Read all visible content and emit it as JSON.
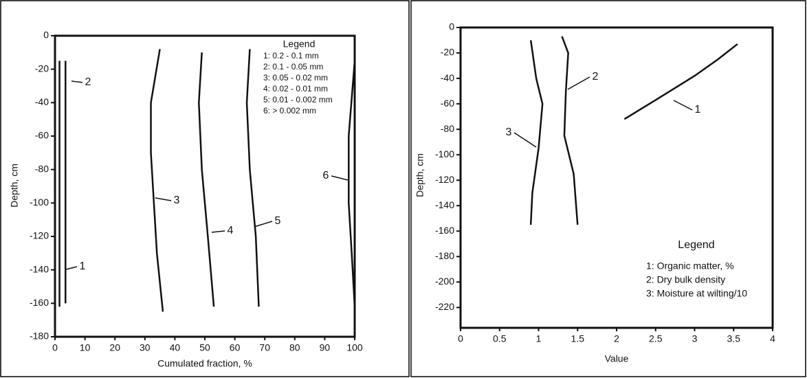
{
  "chart_data": [
    {
      "type": "line",
      "y_label": "Depth, cm",
      "x_label": "Cumulated fraction, %",
      "xlim": [
        0,
        100
      ],
      "xticks": [
        0,
        10,
        20,
        30,
        40,
        50,
        60,
        70,
        80,
        90,
        100
      ],
      "ylim": [
        -180,
        0
      ],
      "yticks": [
        0,
        -20,
        -40,
        -60,
        -80,
        -100,
        -120,
        -140,
        -160,
        -180
      ],
      "legend_title": "Legend",
      "series": [
        {
          "name": "1: 0.2 - 0.1 mm",
          "label": "1",
          "color": "#111",
          "x": [
            1.5,
            1.5
          ],
          "values": [
            -15,
            -162
          ]
        },
        {
          "name": "2: 0.1 - 0.05 mm",
          "label": "2",
          "color": "#111",
          "x": [
            3.5,
            3.5
          ],
          "values": [
            -15,
            -160
          ]
        },
        {
          "name": "3: 0.05 - 0.02 mm",
          "label": "3",
          "color": "#111",
          "x": [
            35,
            32,
            32,
            33,
            34,
            36
          ],
          "values": [
            -8,
            -40,
            -70,
            -100,
            -130,
            -165
          ]
        },
        {
          "name": "4: 0.02 - 0.01 mm",
          "label": "4",
          "color": "#111",
          "x": [
            49,
            48,
            49,
            51,
            53
          ],
          "values": [
            -10,
            -40,
            -80,
            -120,
            -162
          ]
        },
        {
          "name": "5: 0.01 - 0.002 mm",
          "label": "5",
          "color": "#111",
          "x": [
            65,
            64,
            65,
            67,
            68
          ],
          "values": [
            -8,
            -40,
            -80,
            -120,
            -162
          ]
        },
        {
          "name": "6: > 0.002 mm",
          "label": "6",
          "color": "#111",
          "x": [
            100,
            98,
            98,
            99,
            100
          ],
          "values": [
            -15,
            -60,
            -100,
            -130,
            -162
          ]
        }
      ]
    },
    {
      "type": "line",
      "y_label": "Depth, cm",
      "x_label": "Value",
      "xlim": [
        0,
        4
      ],
      "xticks": [
        0,
        0.5,
        1,
        1.5,
        2,
        2.5,
        3,
        3.5,
        4
      ],
      "ylim": [
        -236,
        0
      ],
      "yticks": [
        0,
        -20,
        -40,
        -60,
        -80,
        -100,
        -120,
        -140,
        -160,
        -180,
        -200,
        -220
      ],
      "legend_title": "Legend",
      "series": [
        {
          "name": "1: Organic matter, %",
          "label": "1",
          "color": "#111",
          "x": [
            2.1,
            2.5,
            3,
            3.3,
            3.55
          ],
          "values": [
            -72,
            -57,
            -38,
            -25,
            -13
          ]
        },
        {
          "name": "2: Dry bulk density",
          "label": "2",
          "color": "#111",
          "x": [
            1.3,
            1.38,
            1.35,
            1.33,
            1.45,
            1.5
          ],
          "values": [
            -7,
            -20,
            -50,
            -85,
            -115,
            -155
          ]
        },
        {
          "name": "3: Moisture at wilting/10",
          "label": "3",
          "color": "#111",
          "x": [
            0.9,
            0.97,
            1.05,
            1.0,
            0.92,
            0.9
          ],
          "values": [
            -10,
            -40,
            -60,
            -95,
            -130,
            -155
          ]
        }
      ]
    }
  ]
}
